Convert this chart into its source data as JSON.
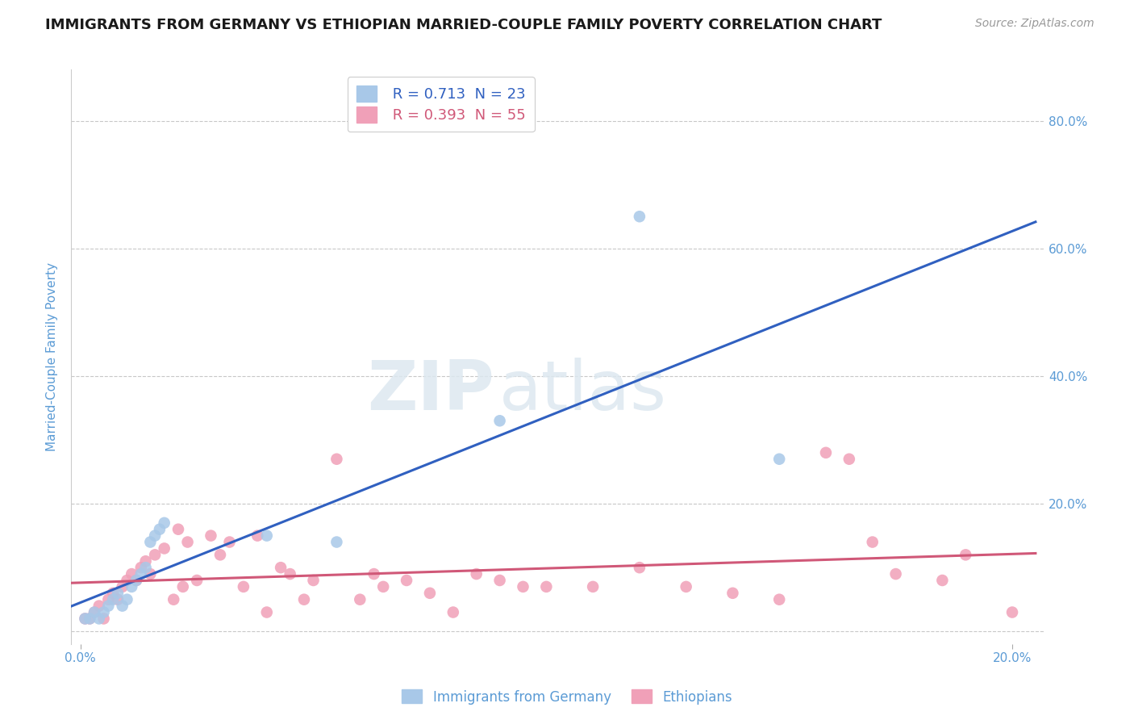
{
  "title": "IMMIGRANTS FROM GERMANY VS ETHIOPIAN MARRIED-COUPLE FAMILY POVERTY CORRELATION CHART",
  "source_text": "Source: ZipAtlas.com",
  "ylabel": "Married-Couple Family Poverty",
  "legend_label_blue": "Immigrants from Germany",
  "legend_label_pink": "Ethiopians",
  "R_blue": 0.713,
  "N_blue": 23,
  "R_pink": 0.393,
  "N_pink": 55,
  "xlim": [
    -0.002,
    0.207
  ],
  "ylim": [
    -0.02,
    0.88
  ],
  "x_tick_labels": [
    "0.0%",
    "20.0%"
  ],
  "y_tick_labels_right": [
    "",
    "20.0%",
    "40.0%",
    "60.0%",
    "80.0%"
  ],
  "grid_color": "#c8c8c8",
  "watermark_zip": "ZIP",
  "watermark_atlas": "atlas",
  "color_blue": "#A8C8E8",
  "color_pink": "#F0A0B8",
  "line_color_blue": "#3060C0",
  "line_color_pink": "#D05878",
  "blue_scatter_x": [
    0.001,
    0.002,
    0.003,
    0.004,
    0.005,
    0.006,
    0.007,
    0.008,
    0.009,
    0.01,
    0.011,
    0.012,
    0.013,
    0.014,
    0.015,
    0.016,
    0.017,
    0.018,
    0.04,
    0.055,
    0.09,
    0.12,
    0.15
  ],
  "blue_scatter_y": [
    0.02,
    0.02,
    0.03,
    0.02,
    0.03,
    0.04,
    0.05,
    0.06,
    0.04,
    0.05,
    0.07,
    0.08,
    0.09,
    0.1,
    0.14,
    0.15,
    0.16,
    0.17,
    0.15,
    0.14,
    0.33,
    0.65,
    0.27
  ],
  "pink_scatter_x": [
    0.001,
    0.002,
    0.003,
    0.004,
    0.005,
    0.006,
    0.007,
    0.008,
    0.009,
    0.01,
    0.011,
    0.012,
    0.013,
    0.014,
    0.015,
    0.016,
    0.018,
    0.02,
    0.021,
    0.022,
    0.023,
    0.025,
    0.028,
    0.03,
    0.032,
    0.035,
    0.038,
    0.04,
    0.043,
    0.045,
    0.048,
    0.05,
    0.055,
    0.06,
    0.063,
    0.065,
    0.07,
    0.075,
    0.08,
    0.085,
    0.09,
    0.095,
    0.1,
    0.11,
    0.12,
    0.13,
    0.14,
    0.15,
    0.16,
    0.165,
    0.17,
    0.175,
    0.185,
    0.19,
    0.2
  ],
  "pink_scatter_y": [
    0.02,
    0.02,
    0.03,
    0.04,
    0.02,
    0.05,
    0.06,
    0.05,
    0.07,
    0.08,
    0.09,
    0.08,
    0.1,
    0.11,
    0.09,
    0.12,
    0.13,
    0.05,
    0.16,
    0.07,
    0.14,
    0.08,
    0.15,
    0.12,
    0.14,
    0.07,
    0.15,
    0.03,
    0.1,
    0.09,
    0.05,
    0.08,
    0.27,
    0.05,
    0.09,
    0.07,
    0.08,
    0.06,
    0.03,
    0.09,
    0.08,
    0.07,
    0.07,
    0.07,
    0.1,
    0.07,
    0.06,
    0.05,
    0.28,
    0.27,
    0.14,
    0.09,
    0.08,
    0.12,
    0.03
  ],
  "title_color": "#1a1a1a",
  "title_fontsize": 13,
  "axis_label_color": "#5B9BD5",
  "tick_label_color": "#5B9BD5"
}
